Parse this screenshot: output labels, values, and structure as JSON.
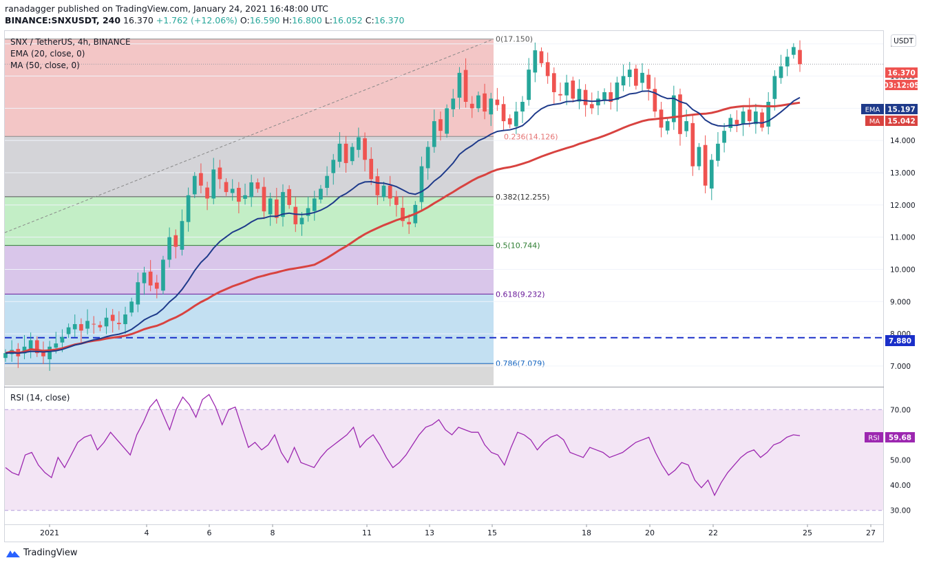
{
  "header": {
    "line1": "ranadagger published on TradingView.com, January 24, 2021 16:48:00 UTC",
    "symbol": "BINANCE:SNXUSDT, 240",
    "price": "16.370",
    "change": "+1.762 (+12.06%)",
    "o_label": "O:",
    "o_value": "16.590",
    "h_label": "H:",
    "h_value": "16.800",
    "l_label": "L:",
    "l_value": "16.052",
    "c_label": "C:",
    "c_value": "16.370"
  },
  "legend": {
    "pair": "SNX / TetherUS, 4h, BINANCE",
    "ema": "EMA (20, close, 0)",
    "ma": "MA (50, close, 0)",
    "rsi": "RSI (14, close)"
  },
  "footer": {
    "brand": "TradingView"
  },
  "colors": {
    "up": "#26a69a",
    "down": "#ef5350",
    "ema": "#1e3a8a",
    "ma": "#d84340",
    "rsi": "#9c27b0",
    "hline": "#1a2fc9",
    "accent": "#1e3a8a"
  },
  "chart_data": {
    "type": "candlestick",
    "currency": "USDT",
    "price_axis": {
      "ylim": [
        6.4,
        17.4
      ],
      "ticks": [
        "7.000",
        "8.000",
        "9.000",
        "10.000",
        "11.000",
        "12.000",
        "13.000",
        "14.000",
        "15.000",
        "16.000",
        "17.000"
      ]
    },
    "x_ticks": [
      "2021",
      "4",
      "6",
      "8",
      "11",
      "13",
      "15",
      "18",
      "20",
      "22",
      "25",
      "27"
    ],
    "fibonacci": [
      {
        "label": "0(17.150)",
        "value": 17.15
      },
      {
        "label": "0.236(14.126)",
        "value": 14.126
      },
      {
        "label": "0.382(12.255)",
        "value": 12.255
      },
      {
        "label": "0.5(10.744)",
        "value": 10.744
      },
      {
        "label": "0.618(9.232)",
        "value": 9.232
      },
      {
        "label": "0.786(7.079)",
        "value": 7.079
      }
    ],
    "horizontal_line": {
      "label": "7.880",
      "value": 7.88
    },
    "price_labels": {
      "last": "16.370",
      "countdown": "03:12:05",
      "ema_tag": "EMA",
      "ema_value": "15.197",
      "ma_tag": "MA",
      "ma_value": "15.042"
    },
    "candles_close": [
      7.4,
      7.5,
      7.3,
      7.6,
      7.8,
      7.4,
      7.3,
      7.6,
      7.7,
      7.9,
      8.2,
      8.3,
      8.1,
      8.4,
      8.3,
      8.2,
      8.5,
      8.4,
      8.3,
      8.6,
      9.0,
      9.6,
      9.9,
      9.5,
      9.4,
      10.3,
      11.0,
      10.7,
      11.5,
      12.3,
      12.9,
      12.6,
      12.2,
      13.1,
      12.8,
      12.4,
      12.5,
      12.1,
      12.3,
      12.7,
      12.5,
      11.8,
      12.2,
      11.6,
      12.4,
      12.0,
      11.4,
      11.6,
      11.9,
      12.2,
      12.5,
      12.9,
      13.4,
      13.9,
      13.3,
      13.8,
      14.1,
      13.4,
      12.8,
      12.3,
      12.6,
      12.2,
      12.0,
      11.5,
      11.4,
      12.0,
      13.2,
      13.8,
      14.6,
      14.3,
      15.0,
      15.3,
      16.1,
      15.2,
      15.0,
      15.4,
      14.9,
      15.3,
      15.1,
      14.6,
      14.5,
      14.9,
      15.2,
      16.2,
      16.8,
      16.4,
      16.0,
      15.5,
      15.4,
      15.8,
      15.3,
      15.6,
      15.1,
      15.0,
      15.3,
      15.5,
      15.2,
      15.8,
      16.0,
      16.2,
      15.7,
      16.1,
      15.6,
      14.9,
      14.4,
      14.6,
      15.4,
      14.2,
      14.6,
      13.2,
      13.8,
      12.6,
      13.4,
      13.9,
      14.3,
      14.7,
      14.5,
      14.9,
      14.6,
      14.9,
      14.4,
      15.2,
      16.0,
      16.3,
      16.6,
      16.9,
      16.37
    ],
    "rsi": {
      "ylim": [
        25,
        78
      ],
      "ticks": [
        "30.00",
        "40.00",
        "50.00",
        "60.00",
        "70.00"
      ],
      "bands": [
        30,
        70
      ],
      "value_tag": "RSI",
      "value": "59.68",
      "values": [
        47,
        45,
        44,
        52,
        53,
        48,
        45,
        43,
        51,
        47,
        52,
        57,
        59,
        60,
        54,
        57,
        61,
        58,
        55,
        52,
        60,
        65,
        71,
        74,
        68,
        62,
        70,
        75,
        72,
        67,
        74,
        76,
        71,
        64,
        70,
        71,
        63,
        55,
        57,
        54,
        56,
        60,
        53,
        49,
        55,
        49,
        48,
        47,
        51,
        54,
        56,
        58,
        60,
        63,
        55,
        58,
        60,
        56,
        51,
        47,
        49,
        52,
        56,
        60,
        63,
        64,
        66,
        62,
        60,
        63,
        62,
        61,
        61,
        56,
        53,
        52,
        48,
        55,
        61,
        60,
        58,
        54,
        57,
        59,
        60,
        58,
        53,
        52,
        51,
        55,
        54,
        53,
        51,
        52,
        53,
        55,
        57,
        58,
        59,
        53,
        48,
        44,
        46,
        49,
        48,
        42,
        39,
        42,
        36,
        41,
        45,
        48,
        51,
        53,
        54,
        51,
        53,
        56,
        57,
        59,
        60,
        59.68
      ]
    }
  }
}
